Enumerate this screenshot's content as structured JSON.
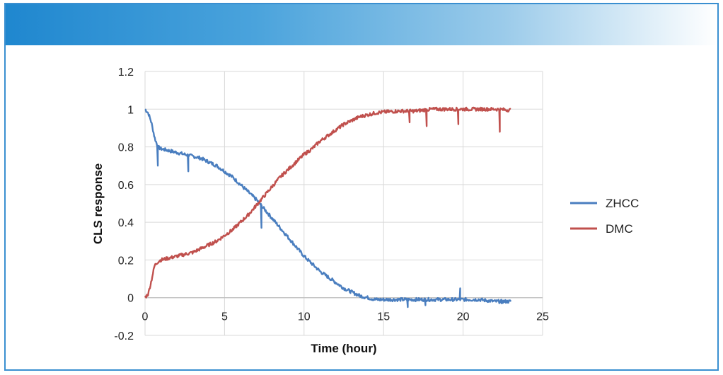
{
  "chart_data": {
    "type": "line",
    "title": "",
    "xlabel": "Time (hour)",
    "ylabel": "CLS response",
    "xlim": [
      0,
      25
    ],
    "ylim": [
      -0.2,
      1.2
    ],
    "x_ticks": [
      0,
      5,
      10,
      15,
      20,
      25
    ],
    "y_ticks": [
      -0.2,
      0,
      0.2,
      0.4,
      0.6,
      0.8,
      1,
      1.2
    ],
    "x_tick_labels": [
      "0",
      "5",
      "10",
      "15",
      "20",
      "25"
    ],
    "y_tick_labels": [
      "-0.2",
      "0",
      "0.2",
      "0.4",
      "0.6",
      "0.8",
      "1",
      "1.2"
    ],
    "grid": true,
    "legend_position": "right",
    "series": [
      {
        "name": "ZHCC",
        "color": "#4a7ebf",
        "x": [
          0,
          0.2,
          0.4,
          0.6,
          0.8,
          1,
          1.5,
          2,
          2.5,
          3,
          3.5,
          4,
          4.5,
          5,
          5.5,
          6,
          6.5,
          7,
          7.5,
          8,
          8.5,
          9,
          9.5,
          10,
          10.5,
          11,
          11.5,
          12,
          12.5,
          13,
          13.5,
          14,
          14.5,
          15,
          16,
          17,
          18,
          19,
          20,
          21,
          22,
          23
        ],
        "values": [
          1.0,
          0.98,
          0.93,
          0.85,
          0.8,
          0.79,
          0.78,
          0.77,
          0.76,
          0.75,
          0.74,
          0.72,
          0.7,
          0.67,
          0.64,
          0.6,
          0.56,
          0.52,
          0.47,
          0.42,
          0.37,
          0.32,
          0.27,
          0.22,
          0.18,
          0.14,
          0.11,
          0.08,
          0.05,
          0.03,
          0.01,
          0.0,
          -0.01,
          -0.01,
          -0.01,
          -0.01,
          -0.01,
          -0.01,
          -0.01,
          -0.01,
          -0.02,
          -0.02
        ],
        "spikes": [
          [
            0.8,
            0.7
          ],
          [
            2.7,
            0.67
          ],
          [
            7.3,
            0.37
          ],
          [
            16.5,
            -0.05
          ],
          [
            17.6,
            -0.04
          ],
          [
            19.8,
            0.05
          ],
          [
            22.4,
            -0.03
          ]
        ]
      },
      {
        "name": "DMC",
        "color": "#c0504d",
        "x": [
          0,
          0.2,
          0.4,
          0.6,
          0.8,
          1,
          1.5,
          2,
          2.5,
          3,
          3.5,
          4,
          4.5,
          5,
          5.5,
          6,
          6.5,
          7,
          7.5,
          8,
          8.5,
          9,
          9.5,
          10,
          10.5,
          11,
          11.5,
          12,
          12.5,
          13,
          13.5,
          14,
          14.5,
          15,
          16,
          17,
          18,
          19,
          20,
          21,
          22,
          23
        ],
        "values": [
          0.0,
          0.02,
          0.09,
          0.17,
          0.19,
          0.2,
          0.21,
          0.22,
          0.23,
          0.24,
          0.26,
          0.28,
          0.3,
          0.33,
          0.36,
          0.4,
          0.44,
          0.49,
          0.54,
          0.59,
          0.64,
          0.68,
          0.72,
          0.76,
          0.79,
          0.83,
          0.86,
          0.89,
          0.92,
          0.94,
          0.96,
          0.97,
          0.98,
          0.985,
          0.99,
          0.99,
          1.0,
          1.0,
          1.0,
          1.0,
          1.0,
          0.995
        ],
        "spikes": [
          [
            16.6,
            0.93
          ],
          [
            17.7,
            0.91
          ],
          [
            19.7,
            0.92
          ],
          [
            22.3,
            0.88
          ]
        ]
      }
    ]
  }
}
